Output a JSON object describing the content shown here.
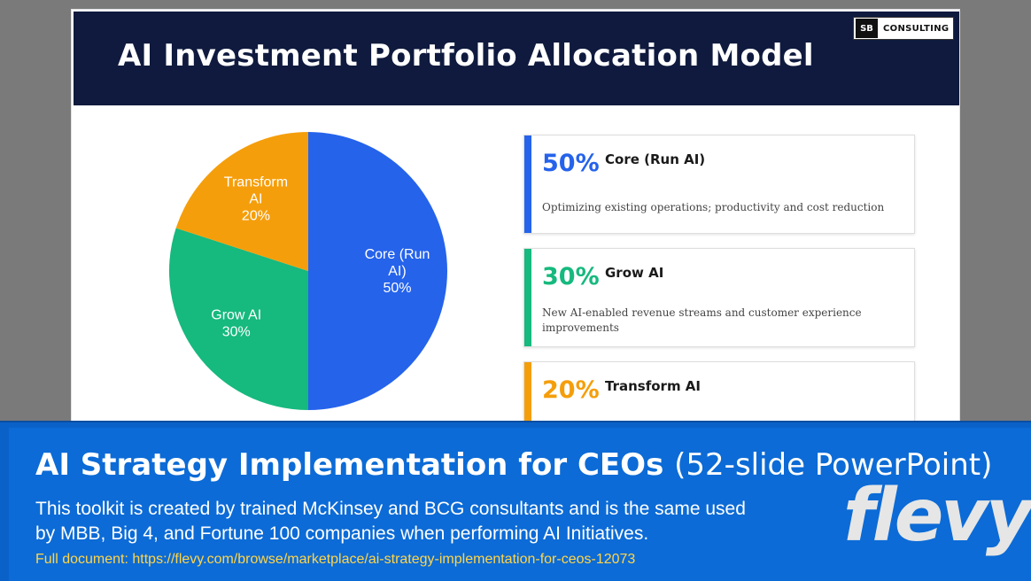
{
  "slide": {
    "title": "AI Investment Portfolio Allocation Model",
    "logo": {
      "mark": "SB",
      "text": "CONSULTING"
    }
  },
  "chart_data": {
    "type": "pie",
    "slices": [
      {
        "label_lines": [
          "Core (Run",
          "AI)",
          "50%"
        ],
        "name": "Core (Run AI)",
        "value": 50,
        "color": "#2563eb"
      },
      {
        "label_lines": [
          "Grow AI",
          "30%"
        ],
        "name": "Grow AI",
        "value": 30,
        "color": "#16b97e"
      },
      {
        "label_lines": [
          "Transform",
          "AI",
          "20%"
        ],
        "name": "Transform AI",
        "value": 20,
        "color": "#f59e0b"
      }
    ]
  },
  "cards": [
    {
      "pct": "50%",
      "name": "Core (Run AI)",
      "desc": "Optimizing existing operations; productivity and cost reduction",
      "color": "#2563eb"
    },
    {
      "pct": "30%",
      "name": "Grow AI",
      "desc": "New AI-enabled revenue streams and customer experience improvements",
      "color": "#16b97e"
    },
    {
      "pct": "20%",
      "name": "Transform AI",
      "desc": "",
      "color": "#f59e0b"
    }
  ],
  "banner": {
    "title_bold": "AI Strategy Implementation for CEOs",
    "title_light": "(52-slide PowerPoint)",
    "body": "This toolkit is created by trained McKinsey and BCG consultants and is the same used by MBB, Big 4, and Fortune 100 companies when performing AI Initiatives.",
    "link": "Full document: https://flevy.com/browse/marketplace/ai-strategy-implementation-for-ceos-12073",
    "brand": "flevy"
  }
}
